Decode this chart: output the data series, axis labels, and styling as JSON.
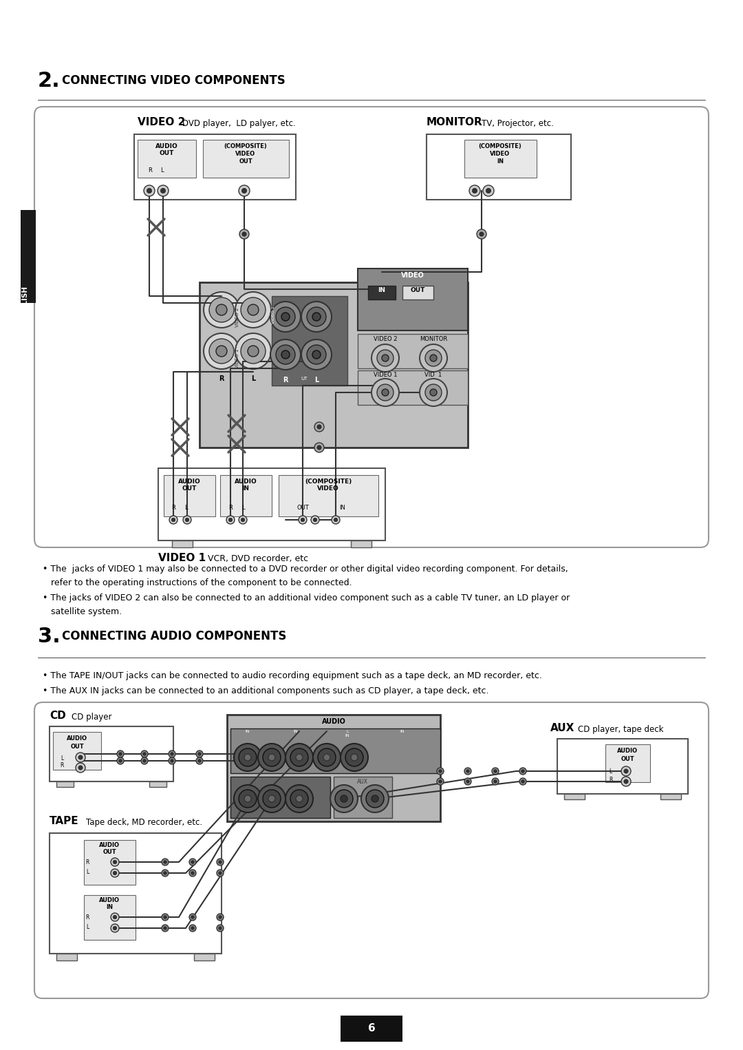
{
  "bg_color": "#ffffff",
  "title2": "2.",
  "title2_sub": "CONNECTING VIDEO COMPONENTS",
  "title3": "3.",
  "title3_sub": "CONNECTING AUDIO COMPONENTS",
  "english_tab_text": "ENGLISH",
  "video2_label": "VIDEO 2",
  "video2_sub": "DVD player,  LD palyer, etc.",
  "monitor_label": "MONITOR",
  "monitor_sub": "TV, Projector, etc.",
  "video1_label": "VIDEO 1",
  "video1_sub": "VCR, DVD recorder, etc",
  "bullet1_line1": "• The  jacks of VIDEO 1 may also be connected to a DVD recorder or other digital video recording component. For details,",
  "bullet1_line2": "   refer to the operating instructions of the component to be connected.",
  "bullet2_line1": "• The jacks of VIDEO 2 can also be connected to an additional video component such as a cable TV tuner, an LD player or",
  "bullet2_line2": "   satellite system.",
  "bullet3": "• The TAPE IN/OUT jacks can be connected to audio recording equipment such as a tape deck, an MD recorder, etc.",
  "bullet4": "• The AUX IN jacks can be connected to an additional components such as CD player, a tape deck, etc.",
  "cd_label": "CD",
  "cd_sub": "CD player",
  "aux_label": "AUX",
  "aux_sub": "CD player, tape deck",
  "tape_label": "TAPE",
  "tape_sub": "Tape deck, MD recorder, etc.",
  "page_number": "6",
  "audio_header": "AUDIO"
}
